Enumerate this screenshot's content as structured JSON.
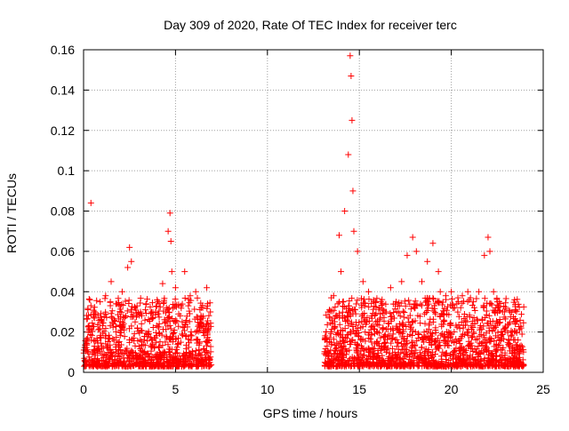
{
  "chart_data": {
    "type": "scatter",
    "title": "Day 309 of 2020, Rate Of TEC Index for receiver terc",
    "xlabel": "GPS time / hours",
    "ylabel": "ROTI / TECUs",
    "xlim": [
      0,
      25
    ],
    "ylim": [
      0,
      0.16
    ],
    "x_ticks": [
      "0",
      "5",
      "10",
      "15",
      "20",
      "25"
    ],
    "y_ticks": [
      "0",
      "0.02",
      "0.04",
      "0.06",
      "0.08",
      "0.1",
      "0.12",
      "0.14",
      "0.16"
    ],
    "grid": true,
    "marker": "plus",
    "colors": {
      "points": "#ff0000",
      "grid": "#a0a0a0",
      "axis": "#000000"
    },
    "series": [
      {
        "x": [
          0.4,
          0.6,
          0.9,
          1.2,
          1.5,
          1.8,
          2.1,
          2.4,
          2.5,
          2.6,
          2.8,
          3.1,
          3.4,
          3.7,
          4.0,
          4.3,
          4.6,
          4.7,
          4.75,
          4.8,
          5.0,
          5.3,
          5.5,
          5.8,
          6.1,
          6.4,
          6.7,
          6.9,
          13.3,
          13.6,
          13.9,
          14.0,
          14.2,
          14.4,
          14.5,
          14.55,
          14.6,
          14.65,
          14.7,
          14.9,
          15.2,
          15.5,
          15.8,
          16.1,
          16.4,
          16.7,
          17.0,
          17.3,
          17.6,
          17.9,
          18.1,
          18.4,
          18.7,
          19.0,
          19.3,
          19.4,
          19.7,
          20.0,
          20.3,
          20.6,
          20.9,
          21.2,
          21.5,
          21.8,
          22.0,
          22.1,
          22.3,
          22.6,
          22.9,
          23.2,
          23.5,
          23.8
        ],
        "y": [
          0.084,
          0.03,
          0.035,
          0.038,
          0.045,
          0.034,
          0.04,
          0.052,
          0.062,
          0.055,
          0.032,
          0.03,
          0.034,
          0.03,
          0.036,
          0.044,
          0.07,
          0.079,
          0.065,
          0.05,
          0.042,
          0.033,
          0.05,
          0.038,
          0.04,
          0.032,
          0.042,
          0.03,
          0.03,
          0.038,
          0.068,
          0.05,
          0.08,
          0.108,
          0.157,
          0.147,
          0.125,
          0.09,
          0.07,
          0.06,
          0.045,
          0.04,
          0.035,
          0.032,
          0.03,
          0.042,
          0.035,
          0.045,
          0.058,
          0.067,
          0.06,
          0.045,
          0.055,
          0.064,
          0.05,
          0.04,
          0.038,
          0.04,
          0.034,
          0.038,
          0.04,
          0.035,
          0.04,
          0.058,
          0.067,
          0.06,
          0.04,
          0.035,
          0.03,
          0.03,
          0.025,
          0.022
        ]
      }
    ]
  }
}
